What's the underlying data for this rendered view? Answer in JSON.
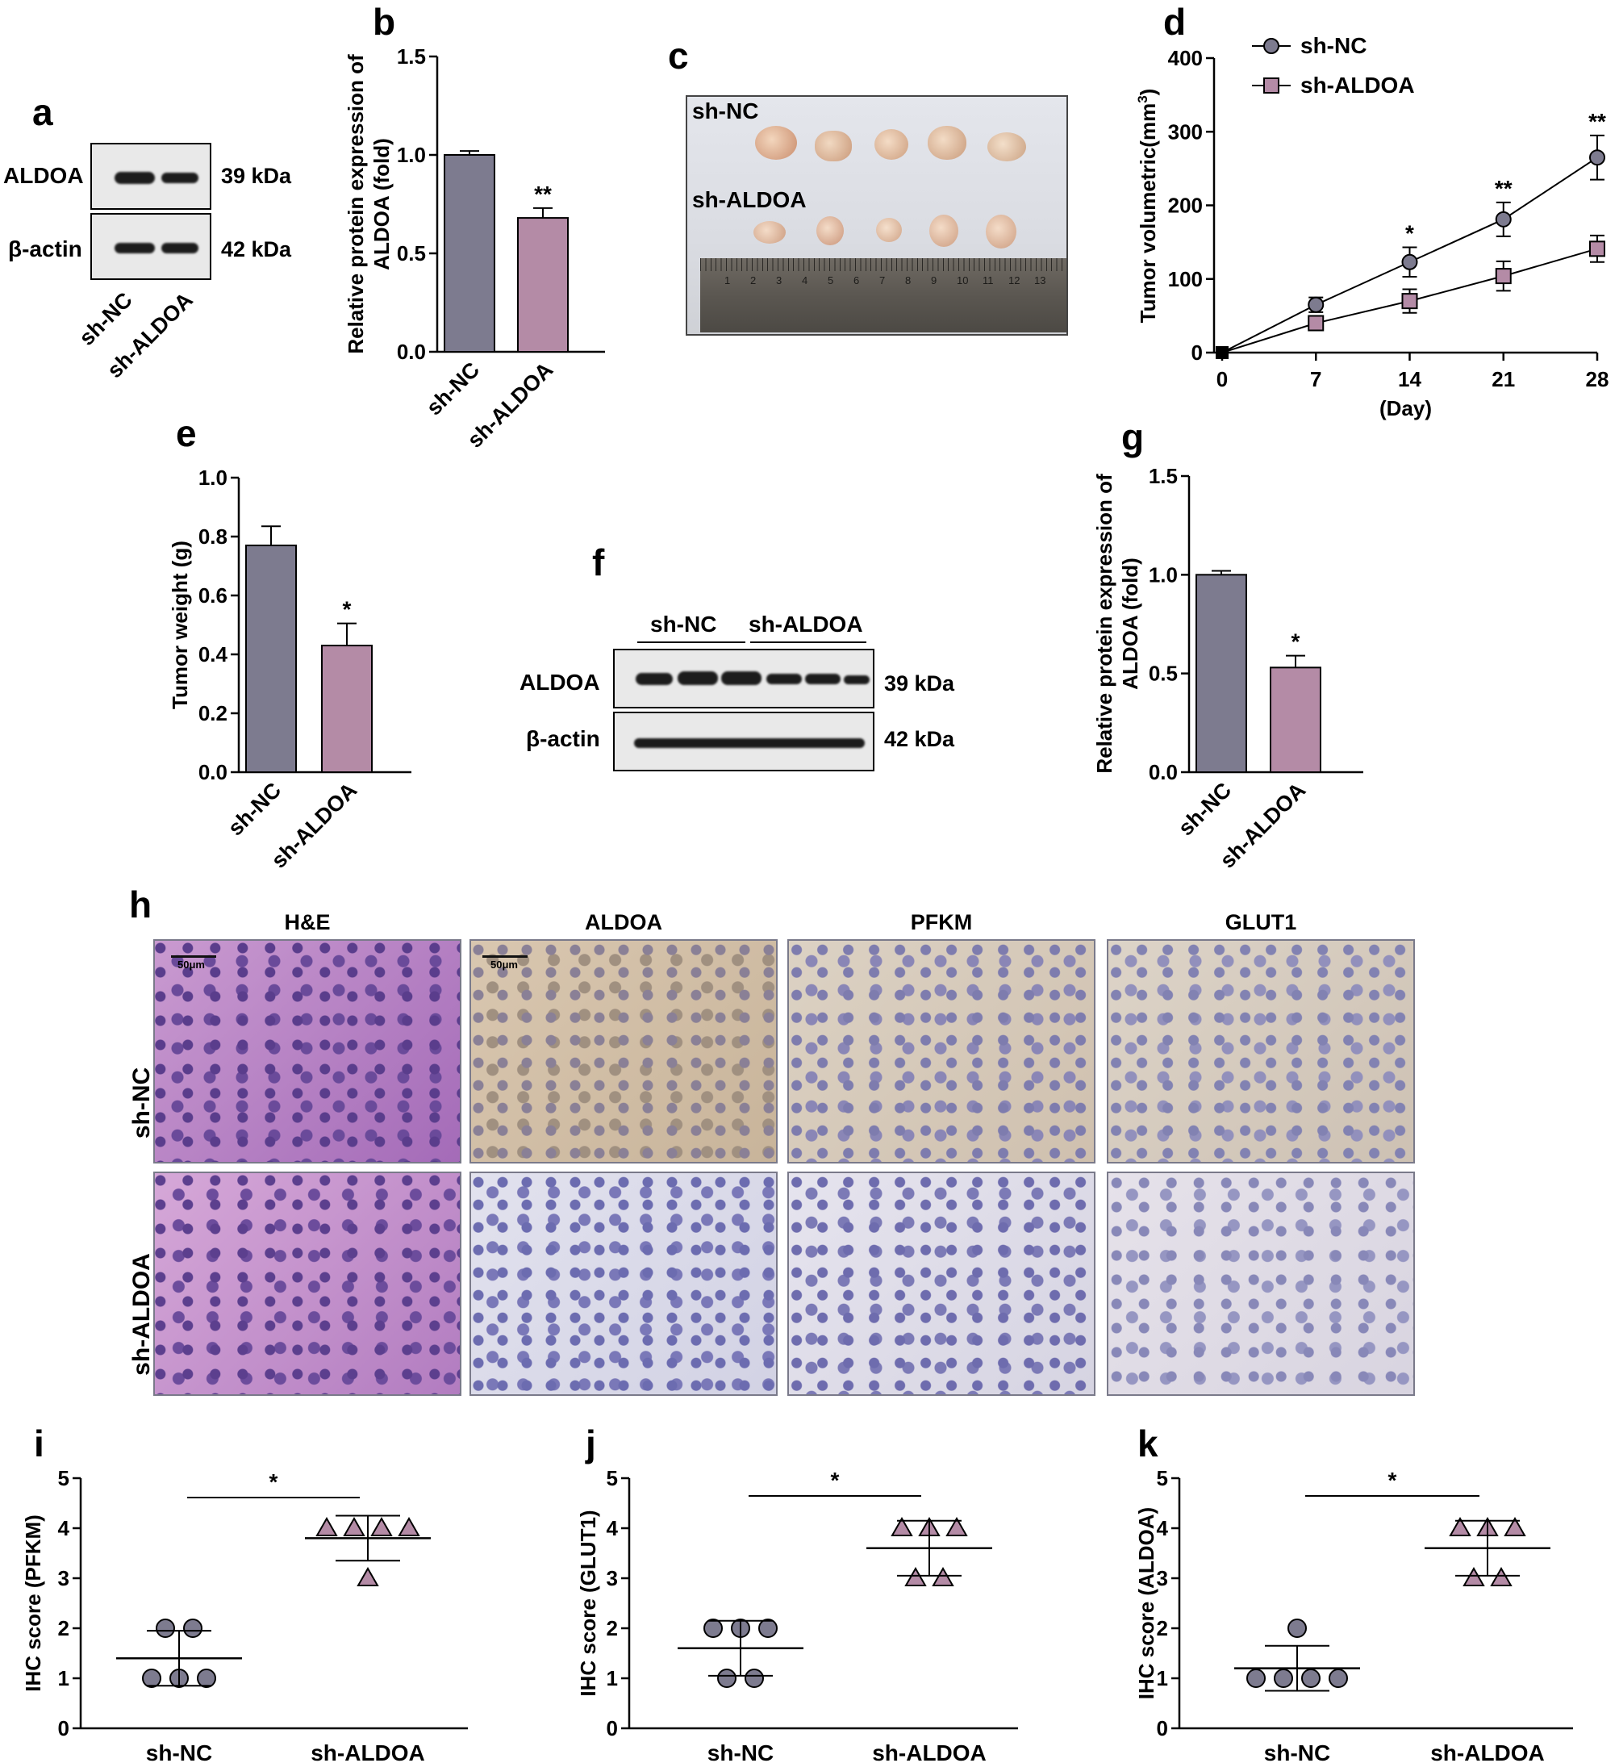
{
  "panels": [
    "a",
    "b",
    "c",
    "d",
    "e",
    "f",
    "g",
    "h",
    "i",
    "j",
    "k"
  ],
  "groups": [
    "sh-NC",
    "sh-ALDOA"
  ],
  "blot_a": {
    "rows": [
      "ALDOA",
      "β-actin"
    ],
    "sizes": [
      "39 kDa",
      "42 kDa"
    ]
  },
  "blot_f": {
    "groups": [
      "sh-NC",
      "sh-ALDOA"
    ],
    "rows": [
      "ALDOA",
      "β-actin"
    ],
    "sizes": [
      "39 kDa",
      "42 kDa"
    ]
  },
  "photo_c": {
    "labels": [
      "sh-NC",
      "sh-ALDOA"
    ],
    "ruler": [
      "1",
      "2",
      "3",
      "4",
      "5",
      "6",
      "7",
      "8",
      "9",
      "10",
      "11",
      "12",
      "13"
    ]
  },
  "ihc_h": {
    "columns": [
      "H&E",
      "ALDOA",
      "PFKM",
      "GLUT1"
    ],
    "rows": [
      "sh-NC",
      "sh-ALDOA"
    ],
    "scale_bar": "50μm"
  },
  "colors": {
    "nc": "#7d7b8f",
    "aldoa": "#b48ba6"
  },
  "chart_data": [
    {
      "panel": "b",
      "type": "bar",
      "categories": [
        "sh-NC",
        "sh-ALDOA"
      ],
      "values": [
        1.0,
        0.68
      ],
      "errors": [
        0.02,
        0.05
      ],
      "significance": [
        "",
        "**"
      ],
      "ylabel": "Relative protein expression of ALDOA (fold)",
      "ylim": [
        0,
        1.5
      ],
      "yticks": [
        "0.0",
        "0.5",
        "1.0",
        "1.5"
      ]
    },
    {
      "panel": "d",
      "type": "line",
      "x": [
        0,
        7,
        14,
        21,
        28
      ],
      "xticks": [
        "0",
        "7",
        "14",
        "21",
        "28"
      ],
      "series": [
        {
          "name": "sh-NC",
          "values": [
            0,
            65,
            123,
            181,
            265
          ],
          "errors": [
            0,
            10,
            20,
            23,
            30
          ]
        },
        {
          "name": "sh-ALDOA",
          "values": [
            0,
            40,
            70,
            104,
            141
          ],
          "errors": [
            0,
            8,
            16,
            20,
            18
          ]
        }
      ],
      "significance": [
        "",
        "",
        "*",
        "**",
        "**"
      ],
      "xlabel": "(Day)",
      "ylabel": "Tumor volumetric(mm",
      "ylabel_sup": "3",
      "ylabel_end": ")",
      "ylim": [
        0,
        400
      ],
      "yticks": [
        "0",
        "100",
        "200",
        "300",
        "400"
      ]
    },
    {
      "panel": "e",
      "type": "bar",
      "categories": [
        "sh-NC",
        "sh-ALDOA"
      ],
      "values": [
        0.77,
        0.43
      ],
      "errors": [
        0.065,
        0.075
      ],
      "significance": [
        "",
        "*"
      ],
      "ylabel": "Tumor weight (g)",
      "ylim": [
        0,
        1.0
      ],
      "yticks": [
        "0.0",
        "0.2",
        "0.4",
        "0.6",
        "0.8",
        "1.0"
      ]
    },
    {
      "panel": "g",
      "type": "bar",
      "categories": [
        "sh-NC",
        "sh-ALDOA"
      ],
      "values": [
        1.0,
        0.53
      ],
      "errors": [
        0.02,
        0.06
      ],
      "significance": [
        "",
        "*"
      ],
      "ylabel": "Relative protein expression of ALDOA (fold)",
      "ylim": [
        0,
        1.5
      ],
      "yticks": [
        "0.0",
        "0.5",
        "1.0",
        "1.5"
      ]
    },
    {
      "panel": "i",
      "type": "scatter",
      "categories": [
        "sh-NC",
        "sh-ALDOA"
      ],
      "series": [
        {
          "name": "sh-NC",
          "values": [
            2,
            2,
            1,
            1,
            1
          ],
          "mean": 1.4,
          "sd": 0.55
        },
        {
          "name": "sh-ALDOA",
          "values": [
            4,
            4,
            4,
            4,
            3
          ],
          "mean": 3.8,
          "sd": 0.45
        }
      ],
      "significance": "*",
      "ylabel": "IHC score (PFKM)",
      "ylim": [
        0,
        5
      ],
      "yticks": [
        "0",
        "1",
        "2",
        "3",
        "4",
        "5"
      ]
    },
    {
      "panel": "j",
      "type": "scatter",
      "categories": [
        "sh-NC",
        "sh-ALDOA"
      ],
      "series": [
        {
          "name": "sh-NC",
          "values": [
            2,
            2,
            2,
            1,
            1
          ],
          "mean": 1.6,
          "sd": 0.55
        },
        {
          "name": "sh-ALDOA",
          "values": [
            4,
            4,
            4,
            3,
            3
          ],
          "mean": 3.6,
          "sd": 0.55
        }
      ],
      "significance": "*",
      "ylabel": "IHC score (GLUT1)",
      "ylim": [
        0,
        5
      ],
      "yticks": [
        "0",
        "1",
        "2",
        "3",
        "4",
        "5"
      ]
    },
    {
      "panel": "k",
      "type": "scatter",
      "categories": [
        "sh-NC",
        "sh-ALDOA"
      ],
      "series": [
        {
          "name": "sh-NC",
          "values": [
            2,
            1,
            1,
            1,
            1
          ],
          "mean": 1.2,
          "sd": 0.45
        },
        {
          "name": "sh-ALDOA",
          "values": [
            4,
            4,
            4,
            3,
            3
          ],
          "mean": 3.6,
          "sd": 0.55
        }
      ],
      "significance": "*",
      "ylabel": "IHC score (ALDOA)",
      "ylim": [
        0,
        5
      ],
      "yticks": [
        "0",
        "1",
        "2",
        "3",
        "4",
        "5"
      ]
    }
  ]
}
